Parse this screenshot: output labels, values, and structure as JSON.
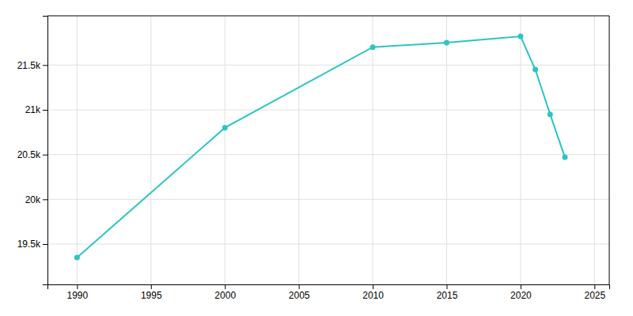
{
  "chart_data": {
    "type": "line",
    "x": [
      1990,
      2000,
      2010,
      2015,
      2020,
      2021,
      2022,
      2023
    ],
    "values": [
      19350,
      20800,
      21700,
      21750,
      21820,
      21450,
      20950,
      20470
    ],
    "color": "#2BC4C4",
    "marker": "circle",
    "xlim": [
      1988,
      2026
    ],
    "ylim": [
      19050,
      22050
    ],
    "xticks": [
      1990,
      1995,
      2000,
      2005,
      2010,
      2015,
      2020,
      2025
    ],
    "yticks": [
      {
        "value": 19500,
        "label": "19.5k"
      },
      {
        "value": 20000,
        "label": "20k"
      },
      {
        "value": 20500,
        "label": "20.5k"
      },
      {
        "value": 21000,
        "label": "21k"
      },
      {
        "value": 21500,
        "label": "21.5k"
      }
    ],
    "grid": true
  }
}
